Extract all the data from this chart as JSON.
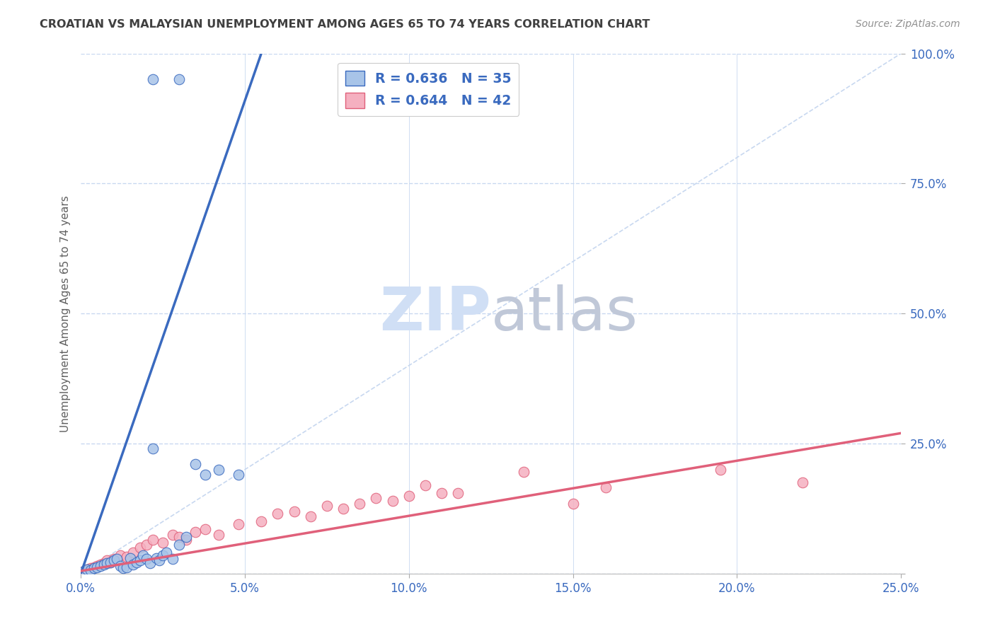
{
  "title": "CROATIAN VS MALAYSIAN UNEMPLOYMENT AMONG AGES 65 TO 74 YEARS CORRELATION CHART",
  "source": "Source: ZipAtlas.com",
  "ylabel": "Unemployment Among Ages 65 to 74 years",
  "y_ticks": [
    0.0,
    0.25,
    0.5,
    0.75,
    1.0
  ],
  "y_tick_labels": [
    "",
    "25.0%",
    "50.0%",
    "75.0%",
    "100.0%"
  ],
  "x_ticks": [
    0.0,
    0.05,
    0.1,
    0.15,
    0.2,
    0.25
  ],
  "x_tick_labels": [
    "0.0%",
    "5.0%",
    "10.0%",
    "15.0%",
    "20.0%",
    "25.0%"
  ],
  "xlim": [
    0.0,
    0.25
  ],
  "ylim": [
    0.0,
    1.0
  ],
  "croatian_R": 0.636,
  "croatian_N": 35,
  "malaysian_R": 0.644,
  "malaysian_N": 42,
  "croatian_color": "#a8c4e8",
  "croatian_line_color": "#3a6abf",
  "malaysian_color": "#f5b0c0",
  "malaysian_line_color": "#e0607a",
  "legend_text_color": "#3a6abf",
  "watermark_zip_color": "#d0dff5",
  "watermark_atlas_color": "#c0c8d8",
  "background_color": "#ffffff",
  "grid_color": "#c8d8f0",
  "title_color": "#404040",
  "source_color": "#909090",
  "croatian_scatter_x": [
    0.001,
    0.002,
    0.003,
    0.004,
    0.005,
    0.006,
    0.007,
    0.008,
    0.009,
    0.01,
    0.011,
    0.012,
    0.013,
    0.014,
    0.015,
    0.016,
    0.017,
    0.018,
    0.019,
    0.02,
    0.021,
    0.022,
    0.023,
    0.024,
    0.025,
    0.026,
    0.028,
    0.03,
    0.032,
    0.035,
    0.038,
    0.042,
    0.048,
    0.022,
    0.03
  ],
  "croatian_scatter_y": [
    0.005,
    0.008,
    0.006,
    0.01,
    0.012,
    0.015,
    0.018,
    0.02,
    0.022,
    0.025,
    0.028,
    0.015,
    0.01,
    0.012,
    0.03,
    0.018,
    0.022,
    0.025,
    0.035,
    0.028,
    0.02,
    0.24,
    0.03,
    0.025,
    0.035,
    0.04,
    0.028,
    0.055,
    0.07,
    0.21,
    0.19,
    0.2,
    0.19,
    0.95,
    0.95
  ],
  "malaysian_scatter_x": [
    0.001,
    0.002,
    0.003,
    0.004,
    0.005,
    0.006,
    0.007,
    0.008,
    0.009,
    0.01,
    0.012,
    0.014,
    0.016,
    0.018,
    0.02,
    0.022,
    0.025,
    0.028,
    0.03,
    0.032,
    0.035,
    0.038,
    0.042,
    0.048,
    0.055,
    0.06,
    0.065,
    0.07,
    0.075,
    0.08,
    0.085,
    0.09,
    0.095,
    0.1,
    0.105,
    0.11,
    0.115,
    0.135,
    0.15,
    0.16,
    0.195,
    0.22
  ],
  "malaysian_scatter_y": [
    0.005,
    0.008,
    0.01,
    0.012,
    0.015,
    0.018,
    0.02,
    0.025,
    0.022,
    0.028,
    0.035,
    0.032,
    0.04,
    0.05,
    0.055,
    0.065,
    0.06,
    0.075,
    0.07,
    0.065,
    0.08,
    0.085,
    0.075,
    0.095,
    0.1,
    0.115,
    0.12,
    0.11,
    0.13,
    0.125,
    0.135,
    0.145,
    0.14,
    0.15,
    0.17,
    0.155,
    0.155,
    0.195,
    0.135,
    0.165,
    0.2,
    0.175
  ],
  "croatian_line_x": [
    0.0,
    0.055
  ],
  "croatian_line_y": [
    0.0,
    1.0
  ],
  "malaysian_line_x": [
    0.0,
    0.25
  ],
  "malaysian_line_y": [
    0.005,
    0.27
  ]
}
